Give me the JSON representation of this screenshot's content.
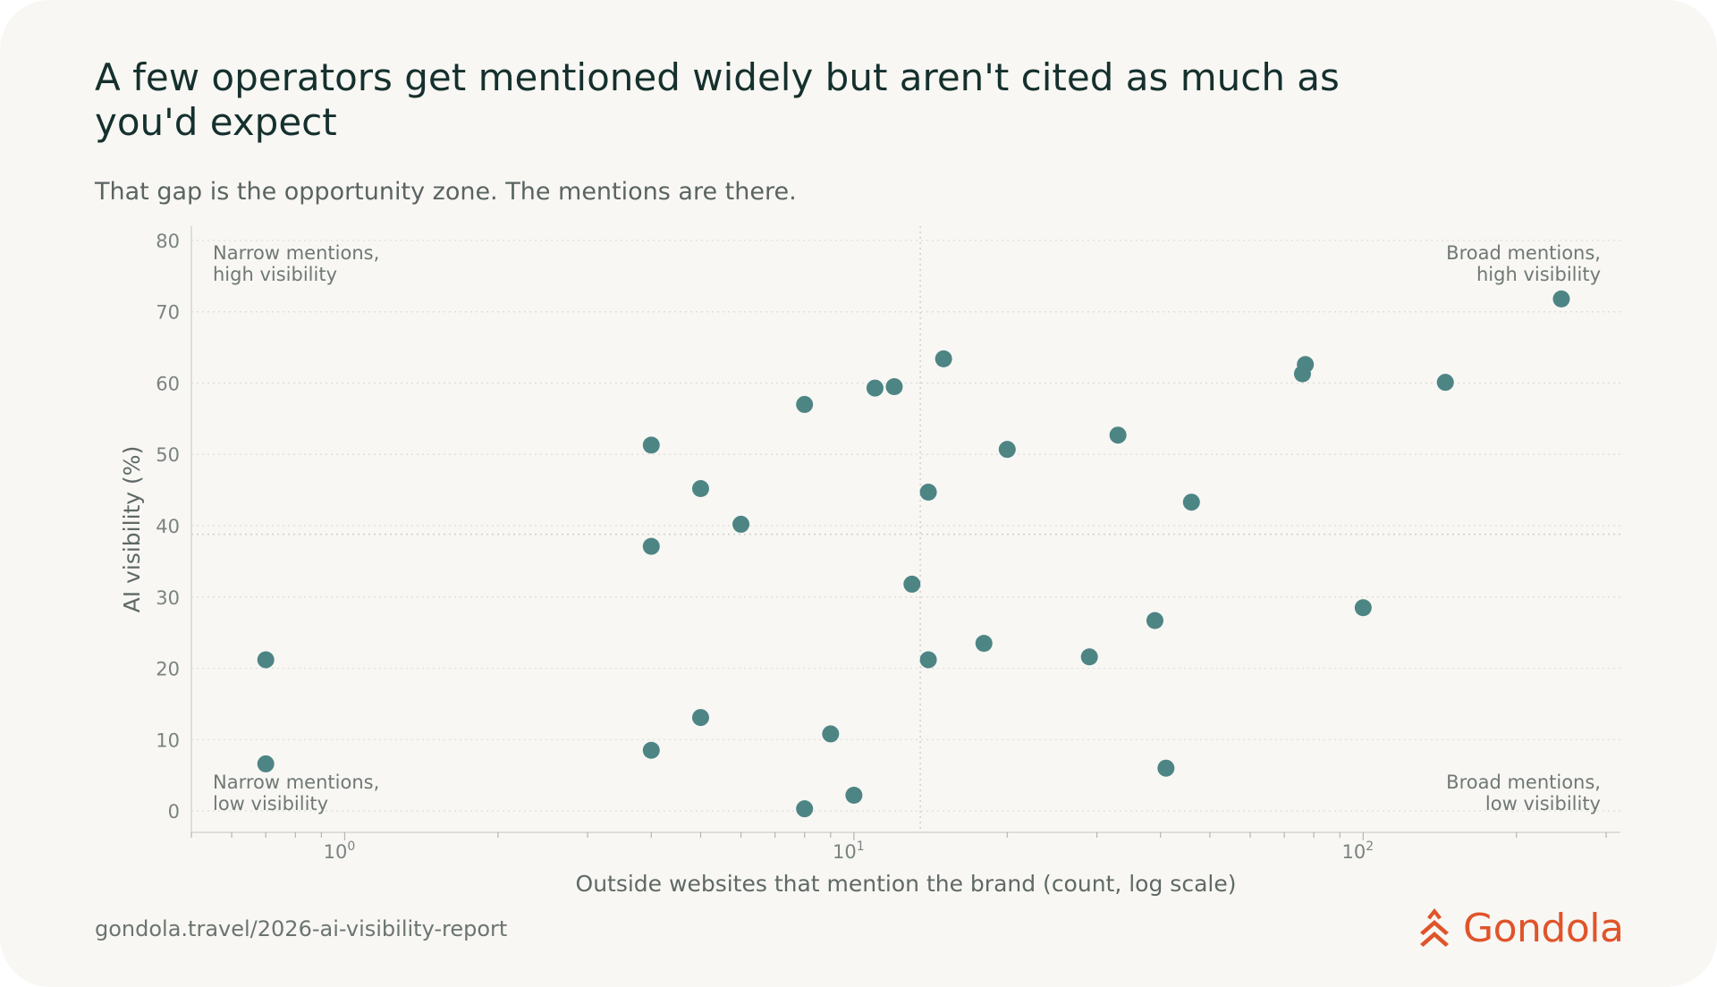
{
  "title": "A few operators get mentioned widely but aren't cited as much as you'd expect",
  "subtitle": "That gap is the opportunity zone. The mentions are there.",
  "footer": {
    "url": "gondola.travel/2026-ai-visibility-report",
    "brand": "Gondola"
  },
  "colors": {
    "background": "#f8f7f4",
    "points": "#4d8584",
    "brand": "#e0542a",
    "title": "#15302d"
  },
  "chart_data": {
    "type": "scatter",
    "xlabel": "Outside websites that mention the brand (count, log scale)",
    "ylabel": "AI visibility (%)",
    "x_scale": "log",
    "xlim": [
      0.5,
      320
    ],
    "ylim": [
      -3,
      82
    ],
    "x_ticks": [
      {
        "value": 1,
        "base": "10",
        "exp": "0"
      },
      {
        "value": 10,
        "base": "10",
        "exp": "1"
      },
      {
        "value": 100,
        "base": "10",
        "exp": "2"
      }
    ],
    "y_ticks": [
      0,
      10,
      20,
      30,
      40,
      50,
      60,
      70,
      80
    ],
    "reference_lines": {
      "x": 13.5,
      "y": 38.8
    },
    "quadrant_labels": {
      "top_left": [
        "Narrow mentions,",
        "high visibility"
      ],
      "top_right": [
        "Broad mentions,",
        "high visibility"
      ],
      "bottom_left": [
        "Narrow mentions,",
        "low visibility"
      ],
      "bottom_right": [
        "Broad mentions,",
        "low visibility"
      ]
    },
    "grid": "horizontal dotted",
    "points": [
      {
        "x": 0.7,
        "y": 21.2
      },
      {
        "x": 0.7,
        "y": 6.6
      },
      {
        "x": 4,
        "y": 51.3
      },
      {
        "x": 4,
        "y": 37.1
      },
      {
        "x": 4,
        "y": 8.5
      },
      {
        "x": 5,
        "y": 45.2
      },
      {
        "x": 5,
        "y": 13.1
      },
      {
        "x": 6,
        "y": 40.2
      },
      {
        "x": 8,
        "y": 57.0
      },
      {
        "x": 8,
        "y": 0.3
      },
      {
        "x": 9,
        "y": 10.8
      },
      {
        "x": 10,
        "y": 2.2
      },
      {
        "x": 11,
        "y": 59.3
      },
      {
        "x": 12,
        "y": 59.5
      },
      {
        "x": 13,
        "y": 31.8
      },
      {
        "x": 14,
        "y": 44.7
      },
      {
        "x": 14,
        "y": 21.2
      },
      {
        "x": 15,
        "y": 63.4
      },
      {
        "x": 18,
        "y": 23.5
      },
      {
        "x": 20,
        "y": 50.7
      },
      {
        "x": 29,
        "y": 21.6
      },
      {
        "x": 33,
        "y": 52.7
      },
      {
        "x": 39,
        "y": 26.7
      },
      {
        "x": 41,
        "y": 6.0
      },
      {
        "x": 46,
        "y": 43.3
      },
      {
        "x": 76,
        "y": 61.3
      },
      {
        "x": 77,
        "y": 62.6
      },
      {
        "x": 100,
        "y": 28.5
      },
      {
        "x": 145,
        "y": 60.1
      },
      {
        "x": 245,
        "y": 71.8
      }
    ]
  }
}
